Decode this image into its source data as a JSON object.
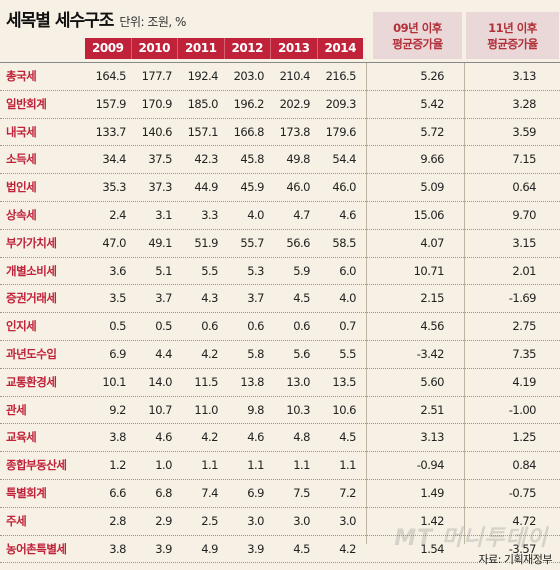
{
  "header": {
    "title": "세목별 세수구조",
    "unit": "단위: 조원, %",
    "years": [
      "2009",
      "2010",
      "2011",
      "2012",
      "2013",
      "2014"
    ],
    "growth_09": [
      "09년 이후",
      "평균증가율"
    ],
    "growth_11": [
      "11년 이후",
      "평균증가율"
    ]
  },
  "rows": [
    {
      "name": "총국세",
      "vals": [
        "164.5",
        "177.7",
        "192.4",
        "203.0",
        "210.4",
        "216.5"
      ],
      "g09": "5.26",
      "g11": "3.13"
    },
    {
      "name": "일반회계",
      "vals": [
        "157.9",
        "170.9",
        "185.0",
        "196.2",
        "202.9",
        "209.3"
      ],
      "g09": "5.42",
      "g11": "3.28"
    },
    {
      "name": "내국세",
      "vals": [
        "133.7",
        "140.6",
        "157.1",
        "166.8",
        "173.8",
        "179.6"
      ],
      "g09": "5.72",
      "g11": "3.59"
    },
    {
      "name": "소득세",
      "vals": [
        "34.4",
        "37.5",
        "42.3",
        "45.8",
        "49.8",
        "54.4"
      ],
      "g09": "9.66",
      "g11": "7.15"
    },
    {
      "name": "법인세",
      "vals": [
        "35.3",
        "37.3",
        "44.9",
        "45.9",
        "46.0",
        "46.0"
      ],
      "g09": "5.09",
      "g11": "0.64"
    },
    {
      "name": "상속세",
      "vals": [
        "2.4",
        "3.1",
        "3.3",
        "4.0",
        "4.7",
        "4.6"
      ],
      "g09": "15.06",
      "g11": "9.70"
    },
    {
      "name": "부가가치세",
      "vals": [
        "47.0",
        "49.1",
        "51.9",
        "55.7",
        "56.6",
        "58.5"
      ],
      "g09": "4.07",
      "g11": "3.15"
    },
    {
      "name": "개별소비세",
      "vals": [
        "3.6",
        "5.1",
        "5.5",
        "5.3",
        "5.9",
        "6.0"
      ],
      "g09": "10.71",
      "g11": "2.01"
    },
    {
      "name": "증권거래세",
      "vals": [
        "3.5",
        "3.7",
        "4.3",
        "3.7",
        "4.5",
        "4.0"
      ],
      "g09": "2.15",
      "g11": "-1.69"
    },
    {
      "name": "인지세",
      "vals": [
        "0.5",
        "0.5",
        "0.6",
        "0.6",
        "0.6",
        "0.7"
      ],
      "g09": "4.56",
      "g11": "2.75"
    },
    {
      "name": "과년도수입",
      "vals": [
        "6.9",
        "4.4",
        "4.2",
        "5.8",
        "5.6",
        "5.5"
      ],
      "g09": "-3.42",
      "g11": "7.35"
    },
    {
      "name": "교통환경세",
      "vals": [
        "10.1",
        "14.0",
        "11.5",
        "13.8",
        "13.0",
        "13.5"
      ],
      "g09": "5.60",
      "g11": "4.19"
    },
    {
      "name": "관세",
      "vals": [
        "9.2",
        "10.7",
        "11.0",
        "9.8",
        "10.3",
        "10.6"
      ],
      "g09": "2.51",
      "g11": "-1.00"
    },
    {
      "name": "교육세",
      "vals": [
        "3.8",
        "4.6",
        "4.2",
        "4.6",
        "4.8",
        "4.5"
      ],
      "g09": "3.13",
      "g11": "1.25"
    },
    {
      "name": "종합부동산세",
      "vals": [
        "1.2",
        "1.0",
        "1.1",
        "1.1",
        "1.1",
        "1.1"
      ],
      "g09": "-0.94",
      "g11": "0.84"
    },
    {
      "name": "특별회계",
      "vals": [
        "6.6",
        "6.8",
        "7.4",
        "6.9",
        "7.5",
        "7.2"
      ],
      "g09": "1.49",
      "g11": "-0.75"
    },
    {
      "name": "주세",
      "vals": [
        "2.8",
        "2.9",
        "2.5",
        "3.0",
        "3.0",
        "3.0"
      ],
      "g09": "1.42",
      "g11": "4.72"
    },
    {
      "name": "농어촌특별세",
      "vals": [
        "3.8",
        "3.9",
        "4.9",
        "3.9",
        "4.5",
        "4.2"
      ],
      "g09": "1.54",
      "g11": "-3.57"
    }
  ],
  "watermark": "MT 머니투데이",
  "source": "자료: 기획재정부"
}
